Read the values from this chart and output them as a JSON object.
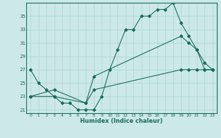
{
  "xlabel": "Humidex (Indice chaleur)",
  "bg_color": "#cce8e8",
  "grid_color": "#b0d8d8",
  "line_color": "#1a6b5a",
  "xlim": [
    -0.5,
    23.5
  ],
  "ylim": [
    20.5,
    37.0
  ],
  "yticks": [
    21,
    23,
    25,
    27,
    29,
    31,
    33,
    35
  ],
  "xticks": [
    0,
    1,
    2,
    3,
    4,
    5,
    6,
    7,
    8,
    9,
    10,
    11,
    12,
    13,
    14,
    15,
    16,
    17,
    18,
    19,
    20,
    21,
    22,
    23
  ],
  "line1_x": [
    0,
    1,
    2,
    3,
    4,
    5,
    6,
    7,
    8,
    9,
    10,
    11,
    12,
    13,
    14,
    15,
    16,
    17,
    18,
    19,
    20,
    21,
    22,
    23
  ],
  "line1_y": [
    27,
    25,
    24,
    23,
    22,
    22,
    21,
    21,
    21,
    23,
    27,
    30,
    33,
    33,
    35,
    35,
    36,
    36,
    37,
    34,
    32,
    30,
    27,
    27
  ],
  "line2_x": [
    0,
    3,
    7,
    8,
    19,
    20,
    21,
    22,
    23
  ],
  "line2_y": [
    23,
    24,
    22,
    26,
    32,
    31,
    30,
    28,
    27
  ],
  "line3_x": [
    0,
    3,
    7,
    8,
    19,
    20,
    21,
    22,
    23
  ],
  "line3_y": [
    23,
    23,
    22,
    24,
    27,
    27,
    27,
    27,
    27
  ]
}
